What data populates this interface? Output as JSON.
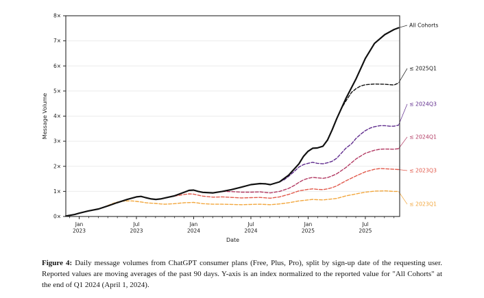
{
  "figure": {
    "caption_label": "Figure 4:",
    "caption_text": " Daily message volumes from ChatGPT consumer plans (Free, Plus, Pro), split by sign-up date of the requesting user. Reported values are moving averages of the past 90 days. Y-axis is an index normalized to the reported value for \"All Cohorts\" at the end of Q1 2024 (April 1, 2024)."
  },
  "chart_data": {
    "type": "line",
    "title": "",
    "xlabel": "Date",
    "ylabel": "Message Volume",
    "grid": "horizontal",
    "legend_position": "right-edge-labels",
    "x_range": [
      2022.883,
      2025.8
    ],
    "y_range": [
      0,
      8
    ],
    "y_ticks": [
      {
        "v": 0,
        "label": "0×"
      },
      {
        "v": 1,
        "label": "1×"
      },
      {
        "v": 2,
        "label": "2×"
      },
      {
        "v": 3,
        "label": "3×"
      },
      {
        "v": 4,
        "label": "4×"
      },
      {
        "v": 5,
        "label": "5×"
      },
      {
        "v": 6,
        "label": "6×"
      },
      {
        "v": 7,
        "label": "7×"
      },
      {
        "v": 8,
        "label": "8×"
      }
    ],
    "x_ticks": [
      {
        "pos": 2023.0,
        "line1": "Jan",
        "line2": "2023"
      },
      {
        "pos": 2023.5,
        "line1": "Jul",
        "line2": "2023"
      },
      {
        "pos": 2024.0,
        "line1": "Jan",
        "line2": "2024"
      },
      {
        "pos": 2024.5,
        "line1": "Jul",
        "line2": "2024"
      },
      {
        "pos": 2025.0,
        "line1": "Jan",
        "line2": "2025"
      },
      {
        "pos": 2025.5,
        "line1": "Jul",
        "line2": "2025"
      }
    ],
    "x_minor_step_months": 1,
    "series": [
      {
        "name": "≤ 2023Q1",
        "color": "#F2A63C",
        "dashed": true,
        "width": 1.4,
        "label_value": 0.49,
        "points": [
          [
            2023.25,
            0.44
          ],
          [
            2023.29,
            0.51
          ],
          [
            2023.33,
            0.57
          ],
          [
            2023.38,
            0.61
          ],
          [
            2023.42,
            0.62
          ],
          [
            2023.46,
            0.62
          ],
          [
            2023.5,
            0.6
          ],
          [
            2023.54,
            0.58
          ],
          [
            2023.58,
            0.55
          ],
          [
            2023.63,
            0.53
          ],
          [
            2023.67,
            0.52
          ],
          [
            2023.71,
            0.5
          ],
          [
            2023.75,
            0.49
          ],
          [
            2023.83,
            0.51
          ],
          [
            2023.92,
            0.55
          ],
          [
            2024.0,
            0.56
          ],
          [
            2024.08,
            0.51
          ],
          [
            2024.17,
            0.49
          ],
          [
            2024.25,
            0.49
          ],
          [
            2024.33,
            0.48
          ],
          [
            2024.42,
            0.47
          ],
          [
            2024.5,
            0.48
          ],
          [
            2024.58,
            0.49
          ],
          [
            2024.67,
            0.47
          ],
          [
            2024.75,
            0.5
          ],
          [
            2024.83,
            0.55
          ],
          [
            2024.92,
            0.62
          ],
          [
            2025.0,
            0.66
          ],
          [
            2025.04,
            0.68
          ],
          [
            2025.08,
            0.67
          ],
          [
            2025.13,
            0.66
          ],
          [
            2025.17,
            0.68
          ],
          [
            2025.21,
            0.7
          ],
          [
            2025.25,
            0.72
          ],
          [
            2025.33,
            0.82
          ],
          [
            2025.42,
            0.9
          ],
          [
            2025.5,
            0.97
          ],
          [
            2025.58,
            1.01
          ],
          [
            2025.67,
            1.02
          ],
          [
            2025.75,
            1.0
          ],
          [
            2025.79,
            1.0
          ]
        ]
      },
      {
        "name": "≤ 2023Q3",
        "color": "#E1584A",
        "dashed": true,
        "width": 1.4,
        "label_value": 1.83,
        "points": [
          [
            2023.75,
            0.74
          ],
          [
            2023.79,
            0.78
          ],
          [
            2023.83,
            0.81
          ],
          [
            2023.88,
            0.85
          ],
          [
            2023.92,
            0.88
          ],
          [
            2023.96,
            0.9
          ],
          [
            2024.0,
            0.89
          ],
          [
            2024.08,
            0.81
          ],
          [
            2024.17,
            0.77
          ],
          [
            2024.25,
            0.78
          ],
          [
            2024.33,
            0.76
          ],
          [
            2024.42,
            0.74
          ],
          [
            2024.5,
            0.75
          ],
          [
            2024.58,
            0.76
          ],
          [
            2024.67,
            0.73
          ],
          [
            2024.75,
            0.78
          ],
          [
            2024.83,
            0.88
          ],
          [
            2024.92,
            1.02
          ],
          [
            2025.0,
            1.08
          ],
          [
            2025.04,
            1.1
          ],
          [
            2025.08,
            1.08
          ],
          [
            2025.13,
            1.07
          ],
          [
            2025.17,
            1.1
          ],
          [
            2025.21,
            1.15
          ],
          [
            2025.25,
            1.22
          ],
          [
            2025.33,
            1.42
          ],
          [
            2025.42,
            1.62
          ],
          [
            2025.5,
            1.78
          ],
          [
            2025.58,
            1.88
          ],
          [
            2025.63,
            1.91
          ],
          [
            2025.67,
            1.9
          ],
          [
            2025.75,
            1.88
          ],
          [
            2025.79,
            1.87
          ]
        ]
      },
      {
        "name": "≤ 2024Q1",
        "color": "#B23A63",
        "dashed": true,
        "width": 1.4,
        "label_value": 3.17,
        "points": [
          [
            2024.25,
            1.0
          ],
          [
            2024.33,
            0.99
          ],
          [
            2024.42,
            0.97
          ],
          [
            2024.5,
            0.97
          ],
          [
            2024.58,
            0.98
          ],
          [
            2024.67,
            0.94
          ],
          [
            2024.75,
            1.0
          ],
          [
            2024.83,
            1.12
          ],
          [
            2024.88,
            1.24
          ],
          [
            2024.92,
            1.36
          ],
          [
            2024.96,
            1.46
          ],
          [
            2025.0,
            1.52
          ],
          [
            2025.04,
            1.56
          ],
          [
            2025.08,
            1.54
          ],
          [
            2025.13,
            1.52
          ],
          [
            2025.17,
            1.55
          ],
          [
            2025.21,
            1.62
          ],
          [
            2025.25,
            1.7
          ],
          [
            2025.33,
            1.95
          ],
          [
            2025.42,
            2.3
          ],
          [
            2025.5,
            2.52
          ],
          [
            2025.58,
            2.64
          ],
          [
            2025.63,
            2.68
          ],
          [
            2025.67,
            2.69
          ],
          [
            2025.75,
            2.68
          ],
          [
            2025.79,
            2.7
          ]
        ]
      },
      {
        "name": "≤ 2024Q3",
        "color": "#5E2A8C",
        "dashed": true,
        "width": 1.4,
        "label_value": 4.48,
        "points": [
          [
            2024.75,
            1.38
          ],
          [
            2024.79,
            1.46
          ],
          [
            2024.83,
            1.6
          ],
          [
            2024.88,
            1.8
          ],
          [
            2024.92,
            1.97
          ],
          [
            2024.96,
            2.07
          ],
          [
            2025.0,
            2.12
          ],
          [
            2025.04,
            2.16
          ],
          [
            2025.08,
            2.12
          ],
          [
            2025.13,
            2.1
          ],
          [
            2025.17,
            2.14
          ],
          [
            2025.21,
            2.2
          ],
          [
            2025.25,
            2.32
          ],
          [
            2025.33,
            2.72
          ],
          [
            2025.38,
            2.9
          ],
          [
            2025.42,
            3.12
          ],
          [
            2025.46,
            3.28
          ],
          [
            2025.5,
            3.42
          ],
          [
            2025.54,
            3.52
          ],
          [
            2025.58,
            3.58
          ],
          [
            2025.63,
            3.62
          ],
          [
            2025.67,
            3.62
          ],
          [
            2025.71,
            3.6
          ],
          [
            2025.75,
            3.6
          ],
          [
            2025.79,
            3.64
          ]
        ]
      },
      {
        "name": "≤ 2025Q1",
        "color": "#111111",
        "dashed": true,
        "width": 1.4,
        "label_value": 5.9,
        "points": [
          [
            2025.25,
            3.9
          ],
          [
            2025.29,
            4.3
          ],
          [
            2025.33,
            4.6
          ],
          [
            2025.38,
            4.95
          ],
          [
            2025.42,
            5.1
          ],
          [
            2025.46,
            5.2
          ],
          [
            2025.5,
            5.25
          ],
          [
            2025.58,
            5.28
          ],
          [
            2025.67,
            5.27
          ],
          [
            2025.75,
            5.24
          ],
          [
            2025.79,
            5.32
          ]
        ]
      },
      {
        "name": "All Cohorts",
        "color": "#111111",
        "dashed": false,
        "width": 2.2,
        "label_value": 7.62,
        "points": [
          [
            2022.883,
            0.02
          ],
          [
            2022.96,
            0.08
          ],
          [
            2023.0,
            0.13
          ],
          [
            2023.08,
            0.22
          ],
          [
            2023.17,
            0.3
          ],
          [
            2023.25,
            0.42
          ],
          [
            2023.33,
            0.55
          ],
          [
            2023.42,
            0.68
          ],
          [
            2023.5,
            0.78
          ],
          [
            2023.54,
            0.8
          ],
          [
            2023.58,
            0.75
          ],
          [
            2023.63,
            0.7
          ],
          [
            2023.67,
            0.68
          ],
          [
            2023.71,
            0.7
          ],
          [
            2023.75,
            0.74
          ],
          [
            2023.83,
            0.82
          ],
          [
            2023.92,
            0.97
          ],
          [
            2023.96,
            1.04
          ],
          [
            2024.0,
            1.05
          ],
          [
            2024.04,
            1.0
          ],
          [
            2024.08,
            0.96
          ],
          [
            2024.17,
            0.94
          ],
          [
            2024.25,
            1.0
          ],
          [
            2024.33,
            1.07
          ],
          [
            2024.42,
            1.17
          ],
          [
            2024.5,
            1.27
          ],
          [
            2024.58,
            1.31
          ],
          [
            2024.63,
            1.3
          ],
          [
            2024.67,
            1.27
          ],
          [
            2024.75,
            1.38
          ],
          [
            2024.83,
            1.65
          ],
          [
            2024.92,
            2.1
          ],
          [
            2024.96,
            2.4
          ],
          [
            2025.0,
            2.6
          ],
          [
            2025.04,
            2.72
          ],
          [
            2025.08,
            2.73
          ],
          [
            2025.13,
            2.8
          ],
          [
            2025.17,
            3.05
          ],
          [
            2025.21,
            3.45
          ],
          [
            2025.25,
            3.9
          ],
          [
            2025.33,
            4.7
          ],
          [
            2025.42,
            5.5
          ],
          [
            2025.5,
            6.3
          ],
          [
            2025.58,
            6.9
          ],
          [
            2025.67,
            7.25
          ],
          [
            2025.75,
            7.45
          ],
          [
            2025.79,
            7.52
          ]
        ]
      }
    ]
  }
}
